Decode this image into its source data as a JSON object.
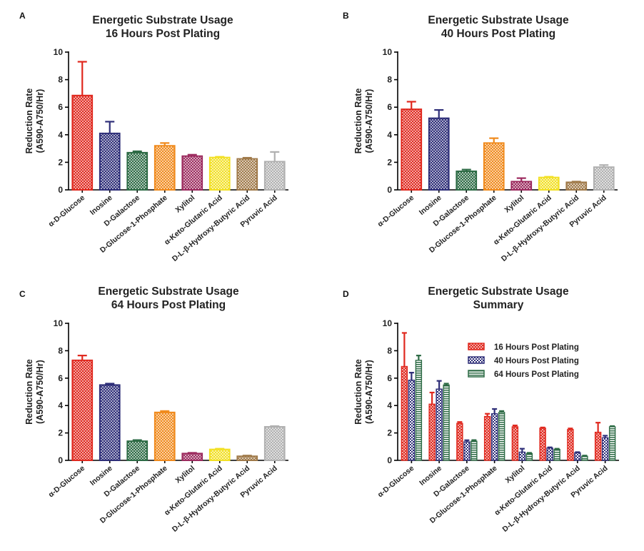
{
  "figure": {
    "categories": [
      "α-D-Glucose",
      "Inosine",
      "D-Galactose",
      "D-Glucose-1-Phosphate",
      "Xylitol",
      "α-Keto-Glutaric Acid",
      "D-L-β-Hydroxy-Butyric Acid",
      "Pyruvic Acid"
    ],
    "bar_colors": [
      "#e0281e",
      "#2e2e78",
      "#2d6b45",
      "#f08a1c",
      "#9c2a5e",
      "#f2e024",
      "#a07a4a",
      "#b0b0b0"
    ],
    "series_colors": [
      "#e0281e",
      "#2e2e78",
      "#2d6b45"
    ]
  },
  "chart_data": [
    {
      "panel": "A",
      "type": "bar",
      "title": "Energetic Substrate Usage",
      "subtitle": "16 Hours Post Plating",
      "ylabel": "Reduction Rate",
      "ylabel2": "(A590-A750/Hr)",
      "ylim": [
        0,
        10
      ],
      "yticks": [
        "0",
        "2",
        "4",
        "6",
        "8",
        "10"
      ],
      "categories": [
        "α-D-Glucose",
        "Inosine",
        "D-Galactose",
        "D-Glucose-1-Phosphate",
        "Xylitol",
        "α-Keto-Glutaric Acid",
        "D-L-β-Hydroxy-Butyric Acid",
        "Pyruvic Acid"
      ],
      "values": [
        6.85,
        4.1,
        2.7,
        3.2,
        2.45,
        2.35,
        2.25,
        2.05
      ],
      "errors": [
        2.45,
        0.85,
        0.1,
        0.2,
        0.1,
        0.05,
        0.08,
        0.7
      ]
    },
    {
      "panel": "B",
      "type": "bar",
      "title": "Energetic Substrate Usage",
      "subtitle": "40 Hours Post Plating",
      "ylabel": "Reduction Rate",
      "ylabel2": "(A590-A750/Hr)",
      "ylim": [
        0,
        10
      ],
      "yticks": [
        "0",
        "2",
        "4",
        "6",
        "8",
        "10"
      ],
      "categories": [
        "α-D-Glucose",
        "Inosine",
        "D-Galactose",
        "D-Glucose-1-Phosphate",
        "Xylitol",
        "α-Keto-Glutaric Acid",
        "D-L-β-Hydroxy-Butyric Acid",
        "Pyruvic Acid"
      ],
      "values": [
        5.85,
        5.2,
        1.35,
        3.4,
        0.6,
        0.9,
        0.55,
        1.65
      ],
      "errors": [
        0.55,
        0.6,
        0.12,
        0.35,
        0.25,
        0.05,
        0.05,
        0.15
      ]
    },
    {
      "panel": "C",
      "type": "bar",
      "title": "Energetic Substrate Usage",
      "subtitle": "64 Hours Post Plating",
      "ylabel": "Reduction Rate",
      "ylabel2": "(A590-A750/Hr)",
      "ylim": [
        0,
        10
      ],
      "yticks": [
        "0",
        "2",
        "4",
        "6",
        "8",
        "10"
      ],
      "categories": [
        "α-D-Glucose",
        "Inosine",
        "D-Galactose",
        "D-Glucose-1-Phosphate",
        "Xylitol",
        "α-Keto-Glutaric Acid",
        "D-L-β-Hydroxy-Butyric Acid",
        "Pyruvic Acid"
      ],
      "values": [
        7.3,
        5.5,
        1.4,
        3.5,
        0.5,
        0.8,
        0.3,
        2.45
      ],
      "errors": [
        0.35,
        0.1,
        0.08,
        0.1,
        0.05,
        0.05,
        0.05,
        0.05
      ]
    },
    {
      "panel": "D",
      "type": "bar",
      "title": "Energetic Substrate Usage",
      "subtitle": "Summary",
      "ylabel": "Reduction Rate",
      "ylabel2": "(A590-A750/Hr)",
      "ylim": [
        0,
        10
      ],
      "yticks": [
        "0",
        "2",
        "4",
        "6",
        "8",
        "10"
      ],
      "legend_position": "top-right",
      "categories": [
        "α-D-Glucose",
        "Inosine",
        "D-Galactose",
        "D-Glucose-1-Phosphate",
        "Xylitol",
        "α-Keto-Glutaric Acid",
        "D-L-β-Hydroxy-Butyric Acid",
        "Pyruvic Acid"
      ],
      "series": [
        {
          "name": "16 Hours Post Plating",
          "values": [
            6.85,
            4.1,
            2.7,
            3.2,
            2.45,
            2.35,
            2.25,
            2.05
          ],
          "errors": [
            2.45,
            0.85,
            0.1,
            0.2,
            0.1,
            0.05,
            0.08,
            0.7
          ]
        },
        {
          "name": "40 Hours Post Plating",
          "values": [
            5.85,
            5.2,
            1.35,
            3.4,
            0.6,
            0.9,
            0.55,
            1.65
          ],
          "errors": [
            0.55,
            0.6,
            0.12,
            0.35,
            0.25,
            0.05,
            0.05,
            0.15
          ]
        },
        {
          "name": "64 Hours Post Plating",
          "values": [
            7.3,
            5.5,
            1.4,
            3.5,
            0.5,
            0.8,
            0.3,
            2.45
          ],
          "errors": [
            0.35,
            0.1,
            0.08,
            0.1,
            0.05,
            0.05,
            0.05,
            0.05
          ]
        }
      ]
    }
  ]
}
